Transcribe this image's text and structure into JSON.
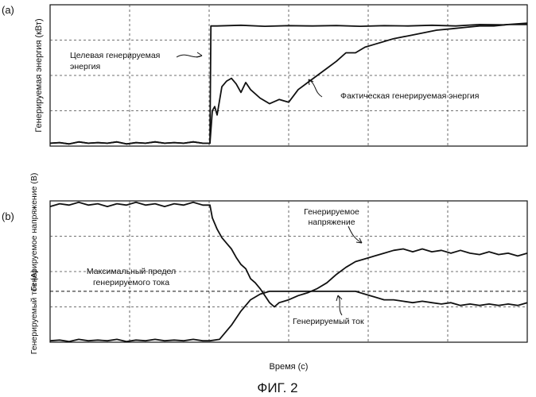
{
  "figure_caption": "ФИГ. 2",
  "chart_data": [
    {
      "type": "line",
      "panel_label": "(a)",
      "ylabel": "Генерируемая энергия (кВт)",
      "xlabel": "",
      "grid": true,
      "ylim": [
        0,
        1
      ],
      "xlim": [
        0,
        1
      ],
      "annotations": [
        {
          "text_lines": [
            "Целевая генерируемая",
            "энергия"
          ],
          "target": "Target"
        },
        {
          "text_lines": [
            "Фактическая генерируемая энергия"
          ],
          "target": "Actual"
        }
      ],
      "series": [
        {
          "name": "Target",
          "x": [
            0,
            0.02,
            0.04,
            0.06,
            0.08,
            0.1,
            0.12,
            0.14,
            0.16,
            0.18,
            0.2,
            0.22,
            0.24,
            0.26,
            0.28,
            0.3,
            0.32,
            0.335,
            0.337,
            0.35,
            0.4,
            0.45,
            0.5,
            0.55,
            0.6,
            0.65,
            0.7,
            0.75,
            0.8,
            0.85,
            0.9,
            0.95,
            1.0
          ],
          "values": [
            0.02,
            0.025,
            0.015,
            0.03,
            0.02,
            0.025,
            0.02,
            0.03,
            0.015,
            0.025,
            0.02,
            0.03,
            0.02,
            0.025,
            0.02,
            0.03,
            0.02,
            0.02,
            0.85,
            0.85,
            0.855,
            0.848,
            0.852,
            0.85,
            0.853,
            0.848,
            0.852,
            0.85,
            0.855,
            0.85,
            0.86,
            0.858,
            0.87
          ]
        },
        {
          "name": "Actual",
          "x": [
            0,
            0.02,
            0.04,
            0.06,
            0.08,
            0.1,
            0.12,
            0.14,
            0.16,
            0.18,
            0.2,
            0.22,
            0.24,
            0.26,
            0.28,
            0.3,
            0.32,
            0.335,
            0.34,
            0.345,
            0.35,
            0.36,
            0.37,
            0.38,
            0.39,
            0.4,
            0.41,
            0.42,
            0.44,
            0.46,
            0.48,
            0.5,
            0.52,
            0.54,
            0.56,
            0.58,
            0.6,
            0.62,
            0.64,
            0.66,
            0.68,
            0.7,
            0.72,
            0.75,
            0.78,
            0.81,
            0.84,
            0.87,
            0.9,
            0.93,
            0.96,
            1.0
          ],
          "values": [
            0.02,
            0.025,
            0.015,
            0.03,
            0.02,
            0.025,
            0.02,
            0.03,
            0.015,
            0.025,
            0.02,
            0.03,
            0.02,
            0.025,
            0.02,
            0.03,
            0.02,
            0.02,
            0.25,
            0.28,
            0.22,
            0.42,
            0.46,
            0.48,
            0.44,
            0.38,
            0.45,
            0.4,
            0.34,
            0.3,
            0.33,
            0.31,
            0.4,
            0.45,
            0.5,
            0.55,
            0.6,
            0.66,
            0.66,
            0.7,
            0.72,
            0.74,
            0.76,
            0.78,
            0.8,
            0.82,
            0.83,
            0.84,
            0.85,
            0.85,
            0.86,
            0.86
          ]
        }
      ]
    },
    {
      "type": "line",
      "panel_label": "(b)",
      "ylabel_upper": "Генерируемое напряжение (В)",
      "ylabel_lower": "Генерируемый ток (А)",
      "xlabel": "Время (с)",
      "grid": true,
      "ylim": [
        0,
        1
      ],
      "xlim": [
        0,
        1
      ],
      "annotations": [
        {
          "text_lines": [
            "Генерируемое",
            "напряжение"
          ],
          "target": "Voltage"
        },
        {
          "text_lines": [
            "Максимальный предел",
            "генерируемого тока"
          ],
          "target": "Limit"
        },
        {
          "text_lines": [
            "Генерируемый ток"
          ],
          "target": "Current"
        }
      ],
      "series": [
        {
          "name": "Voltage",
          "x": [
            0,
            0.02,
            0.04,
            0.06,
            0.08,
            0.1,
            0.12,
            0.14,
            0.16,
            0.18,
            0.2,
            0.22,
            0.24,
            0.26,
            0.28,
            0.3,
            0.32,
            0.335,
            0.34,
            0.35,
            0.36,
            0.37,
            0.38,
            0.39,
            0.4,
            0.41,
            0.42,
            0.43,
            0.44,
            0.45,
            0.46,
            0.47,
            0.48,
            0.5,
            0.52,
            0.54,
            0.56,
            0.58,
            0.6,
            0.62,
            0.64,
            0.66,
            0.68,
            0.7,
            0.72,
            0.74,
            0.76,
            0.78,
            0.8,
            0.82,
            0.84,
            0.86,
            0.88,
            0.9,
            0.92,
            0.94,
            0.96,
            0.98,
            1.0
          ],
          "values": [
            0.96,
            0.98,
            0.97,
            0.99,
            0.97,
            0.98,
            0.96,
            0.98,
            0.97,
            0.99,
            0.97,
            0.98,
            0.96,
            0.98,
            0.97,
            0.99,
            0.97,
            0.97,
            0.88,
            0.8,
            0.74,
            0.7,
            0.66,
            0.6,
            0.55,
            0.52,
            0.45,
            0.42,
            0.38,
            0.33,
            0.28,
            0.25,
            0.28,
            0.3,
            0.33,
            0.35,
            0.38,
            0.42,
            0.48,
            0.53,
            0.57,
            0.59,
            0.61,
            0.63,
            0.65,
            0.66,
            0.64,
            0.66,
            0.64,
            0.65,
            0.63,
            0.65,
            0.63,
            0.62,
            0.64,
            0.62,
            0.63,
            0.61,
            0.63
          ]
        },
        {
          "name": "Current",
          "x": [
            0,
            0.02,
            0.04,
            0.06,
            0.08,
            0.1,
            0.12,
            0.14,
            0.16,
            0.18,
            0.2,
            0.22,
            0.24,
            0.26,
            0.28,
            0.3,
            0.32,
            0.335,
            0.355,
            0.38,
            0.4,
            0.42,
            0.44,
            0.46,
            0.48,
            0.5,
            0.52,
            0.54,
            0.56,
            0.58,
            0.6,
            0.62,
            0.64,
            0.66,
            0.68,
            0.7,
            0.72,
            0.74,
            0.76,
            0.78,
            0.8,
            0.82,
            0.84,
            0.86,
            0.88,
            0.9,
            0.92,
            0.94,
            0.96,
            0.98,
            1.0
          ],
          "values": [
            0.01,
            0.015,
            0.005,
            0.02,
            0.01,
            0.015,
            0.01,
            0.02,
            0.005,
            0.015,
            0.01,
            0.02,
            0.01,
            0.015,
            0.01,
            0.02,
            0.01,
            0.01,
            0.02,
            0.12,
            0.22,
            0.3,
            0.34,
            0.36,
            0.36,
            0.36,
            0.36,
            0.36,
            0.36,
            0.36,
            0.36,
            0.36,
            0.36,
            0.34,
            0.32,
            0.3,
            0.3,
            0.29,
            0.28,
            0.29,
            0.28,
            0.27,
            0.28,
            0.26,
            0.27,
            0.26,
            0.27,
            0.26,
            0.27,
            0.26,
            0.28
          ]
        },
        {
          "name": "Limit",
          "style": "dashed",
          "x": [
            0,
            1
          ],
          "values": [
            0.36,
            0.36
          ]
        }
      ]
    }
  ]
}
